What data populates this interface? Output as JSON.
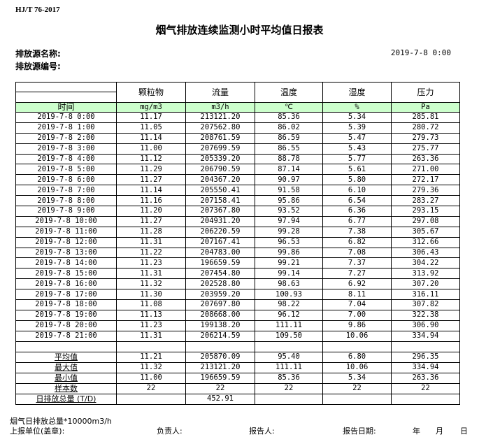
{
  "header": {
    "standard": "HJ/T  76-2017",
    "title": "烟气排放连续监测小时平均值日报表",
    "source_name_label": "排放源名称:",
    "source_id_label": "排放源编号:",
    "report_time": "2019-7-8 0:00"
  },
  "table": {
    "columns": [
      "颗粒物",
      "流量",
      "温度",
      "湿度",
      "压力"
    ],
    "time_label": "时间",
    "units": [
      "mg/m3",
      "m3/h",
      "℃",
      "%",
      "Pa"
    ],
    "rows": [
      [
        "2019-7-8 0:00",
        "11.17",
        "213121.20",
        "85.36",
        "5.34",
        "285.81"
      ],
      [
        "2019-7-8 1:00",
        "11.05",
        "207562.80",
        "86.02",
        "5.39",
        "280.72"
      ],
      [
        "2019-7-8 2:00",
        "11.14",
        "208761.59",
        "86.59",
        "5.47",
        "279.73"
      ],
      [
        "2019-7-8 3:00",
        "11.00",
        "207699.59",
        "86.55",
        "5.43",
        "275.77"
      ],
      [
        "2019-7-8 4:00",
        "11.12",
        "205339.20",
        "88.78",
        "5.77",
        "263.36"
      ],
      [
        "2019-7-8 5:00",
        "11.29",
        "206790.59",
        "87.14",
        "5.61",
        "271.00"
      ],
      [
        "2019-7-8 6:00",
        "11.27",
        "204367.20",
        "90.97",
        "5.80",
        "272.17"
      ],
      [
        "2019-7-8 7:00",
        "11.14",
        "205550.41",
        "91.58",
        "6.10",
        "279.36"
      ],
      [
        "2019-7-8 8:00",
        "11.16",
        "207158.41",
        "95.86",
        "6.54",
        "283.27"
      ],
      [
        "2019-7-8 9:00",
        "11.20",
        "207367.80",
        "93.52",
        "6.36",
        "293.15"
      ],
      [
        "2019-7-8 10:00",
        "11.27",
        "204931.20",
        "97.94",
        "6.77",
        "297.08"
      ],
      [
        "2019-7-8 11:00",
        "11.28",
        "206220.59",
        "99.28",
        "7.38",
        "305.67"
      ],
      [
        "2019-7-8 12:00",
        "11.31",
        "207167.41",
        "96.53",
        "6.82",
        "312.66"
      ],
      [
        "2019-7-8 13:00",
        "11.22",
        "204783.00",
        "99.86",
        "7.08",
        "306.43"
      ],
      [
        "2019-7-8 14:00",
        "11.23",
        "196659.59",
        "99.21",
        "7.37",
        "304.22"
      ],
      [
        "2019-7-8 15:00",
        "11.31",
        "207454.80",
        "99.14",
        "7.27",
        "313.92"
      ],
      [
        "2019-7-8 16:00",
        "11.32",
        "202528.80",
        "98.63",
        "6.92",
        "307.20"
      ],
      [
        "2019-7-8 17:00",
        "11.30",
        "203959.20",
        "100.93",
        "8.11",
        "316.11"
      ],
      [
        "2019-7-8 18:00",
        "11.08",
        "207697.80",
        "98.22",
        "7.04",
        "307.82"
      ],
      [
        "2019-7-8 19:00",
        "11.13",
        "208668.00",
        "96.12",
        "7.00",
        "322.38"
      ],
      [
        "2019-7-8 20:00",
        "11.23",
        "199138.20",
        "111.11",
        "9.86",
        "306.90"
      ],
      [
        "2019-7-8 21:00",
        "11.31",
        "206214.59",
        "109.50",
        "10.06",
        "334.94"
      ]
    ],
    "summary": [
      [
        "平均值",
        "11.21",
        "205870.09",
        "95.40",
        "6.80",
        "296.35"
      ],
      [
        "最大值",
        "11.32",
        "213121.20",
        "111.11",
        "10.06",
        "334.94"
      ],
      [
        "最小值",
        "11.00",
        "196659.59",
        "85.36",
        "5.34",
        "263.36"
      ],
      [
        "样本数",
        "22",
        "22",
        "22",
        "22",
        "22"
      ],
      [
        "日排放总量 (T/D)",
        "",
        "452.91",
        "",
        "",
        ""
      ]
    ]
  },
  "footer": {
    "note": "烟气日排放总量*10000m3/h",
    "unit_label": "上报单位(盖章):",
    "responsible_label": "负责人:",
    "reporter_label": "报告人:",
    "date_label": "报告日期:",
    "year": "年",
    "month": "月",
    "day": "日"
  },
  "colors": {
    "unit_row_bg": "#ccffcc"
  }
}
